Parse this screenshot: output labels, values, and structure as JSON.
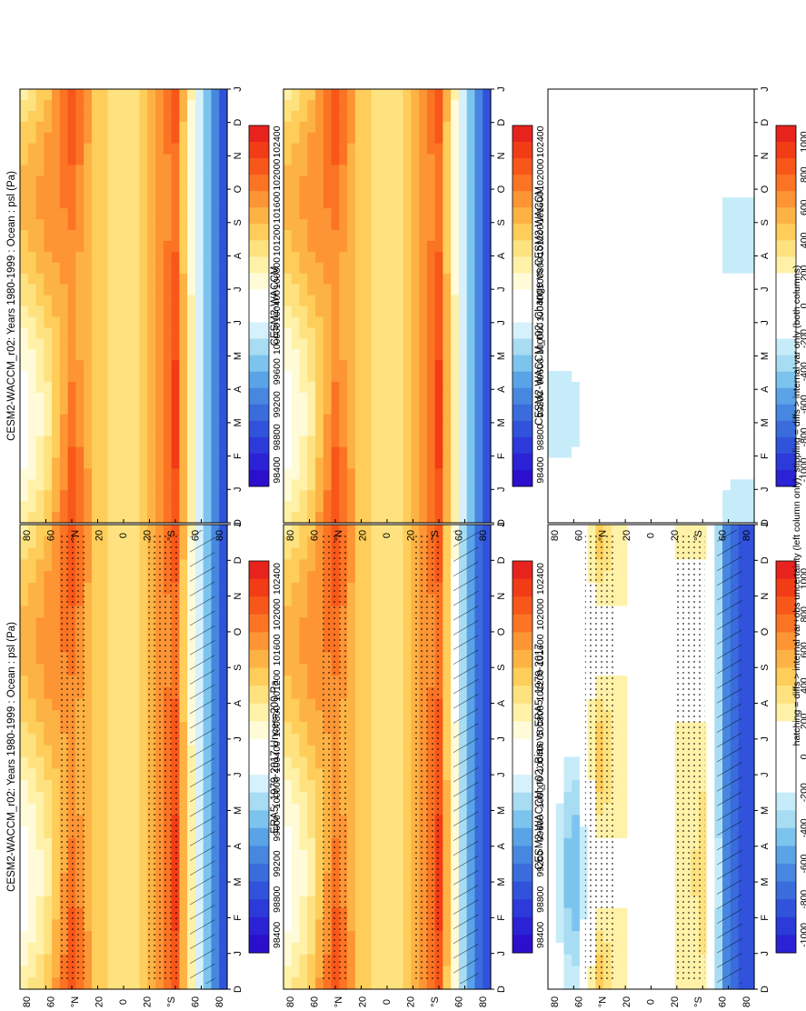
{
  "figure": {
    "footnote": "hatching = diffs > internal var+obs uncertainty (left column only); stippling = diffs > internal var only (both columns)"
  },
  "months": [
    "D",
    "J",
    "F",
    "M",
    "A",
    "M",
    "J",
    "J",
    "A",
    "S",
    "O",
    "N",
    "D",
    "J"
  ],
  "lat_labels": [
    "80",
    "60",
    "°N",
    "20",
    "0",
    "20",
    "°S",
    "60",
    "80"
  ],
  "psl_colorbar": {
    "labels": [
      "102400",
      "102000",
      "101600",
      "101200",
      "100800",
      "100400",
      "100000",
      "99600",
      "99200",
      "98800",
      "98400"
    ],
    "colors": [
      "#e8231e",
      "#f23c16",
      "#f8571a",
      "#fb7424",
      "#fd9535",
      "#fdb344",
      "#fecd5a",
      "#fee27f",
      "#fff1a8",
      "#fffbd8",
      "#ffffff",
      "#ffffff",
      "#d6f1fb",
      "#a8dcf3",
      "#7cc4ee",
      "#5aa3e6",
      "#4787e0",
      "#3a6cdc",
      "#3153db",
      "#2b3ad8",
      "#2a22d4",
      "#2a10cc"
    ]
  },
  "diff_colorbar": {
    "labels": [
      "1000",
      "800",
      "600",
      "400",
      "200",
      "0",
      "-200",
      "-400",
      "-600",
      "-800",
      "-1000"
    ],
    "colors": [
      "#e8231e",
      "#f23c16",
      "#f8571a",
      "#fb7424",
      "#fd9535",
      "#fdb344",
      "#fecd5a",
      "#fee27f",
      "#fff1a8",
      "#ffffff",
      "#ffffff",
      "#ffffff",
      "#ffffff",
      "#c6ecfa",
      "#a8dcf3",
      "#7cc4ee",
      "#5aa3e6",
      "#4787e0",
      "#3a6cdc",
      "#3153db",
      "#2b3ad8",
      "#2a22d4"
    ]
  },
  "panels": [
    {
      "id": "model-left",
      "title": "CESM2-WACCM_r02: Years 1980-1999 : Ocean : psl (Pa)",
      "kind": "psl",
      "hatch": true,
      "stipple": true
    },
    {
      "id": "model-right",
      "title": "CESM2-WACCM_r02: Years 1980-1999 : Ocean : psl (Pa)",
      "kind": "psl",
      "hatch": false,
      "stipple": false
    },
    {
      "id": "obs-left",
      "title": "ERA5: 1979-2017 Uncer=200 Pa",
      "kind": "psl",
      "hatch": true,
      "stipple": true
    },
    {
      "id": "model-right-2",
      "title": "CESM2-WACCM",
      "kind": "psl",
      "hatch": false,
      "stipple": false
    },
    {
      "id": "bias-left",
      "title": "CESM2-WACCM_r02: Bias vs ERA5: 1979-2017",
      "kind": "diff",
      "hatch": true,
      "stipple": true
    },
    {
      "id": "change-right",
      "title": "CESM2-WACCM_r02: Change vs CESM2-WACCM",
      "kind": "diff",
      "hatch": false,
      "stipple": false
    }
  ],
  "chart_data": [
    {
      "type": "heatmap",
      "title": "CESM2-WACCM_r02: Years 1980-1999 : Ocean : psl (Pa)",
      "x": [
        "D",
        "J",
        "F",
        "M",
        "A",
        "M",
        "J",
        "J",
        "A",
        "S",
        "O",
        "N",
        "D",
        "J"
      ],
      "y": [
        "80N",
        "60N",
        "40N",
        "20N",
        "0",
        "20S",
        "40S",
        "60S",
        "80S"
      ],
      "zunits": "Pa",
      "zlim": [
        98400,
        102400
      ],
      "zonal_mean_profile": [
        100900,
        101300,
        101900,
        101300,
        101000,
        101400,
        102100,
        100000,
        98600
      ]
    },
    {
      "type": "heatmap",
      "title": "ERA5: 1979-2017 Uncer=200 Pa",
      "x": [
        "D",
        "J",
        "F",
        "M",
        "A",
        "M",
        "J",
        "J",
        "A",
        "S",
        "O",
        "N",
        "D",
        "J"
      ],
      "y": [
        "80N",
        "60N",
        "40N",
        "20N",
        "0",
        "20S",
        "40S",
        "60S",
        "80S"
      ],
      "zunits": "Pa",
      "zlim": [
        98400,
        102400
      ],
      "zonal_mean_profile": [
        100900,
        101300,
        101900,
        101300,
        101000,
        101400,
        102100,
        99700,
        98700
      ]
    },
    {
      "type": "heatmap",
      "title": "CESM2-WACCM_r02: Bias vs ERA5: 1979-2017",
      "x": [
        "D",
        "J",
        "F",
        "M",
        "A",
        "M",
        "J",
        "J",
        "A",
        "S",
        "O",
        "N",
        "D",
        "J"
      ],
      "y": [
        "80N",
        "60N",
        "40N",
        "20N",
        "0",
        "20S",
        "40S",
        "60S",
        "80S"
      ],
      "zunits": "Pa",
      "zlim": [
        -1000,
        1000
      ],
      "zonal_mean_profile": [
        0,
        -250,
        300,
        200,
        0,
        200,
        250,
        -700,
        -900
      ]
    },
    {
      "type": "heatmap",
      "title": "CESM2-WACCM_r02: Change vs CESM2-WACCM",
      "x": [
        "D",
        "J",
        "F",
        "M",
        "A",
        "M",
        "J",
        "J",
        "A",
        "S",
        "O",
        "N",
        "D",
        "J"
      ],
      "y": [
        "80N",
        "60N",
        "40N",
        "20N",
        "0",
        "20S",
        "40S",
        "60S",
        "80S"
      ],
      "zunits": "Pa",
      "zlim": [
        -1000,
        1000
      ],
      "zonal_mean_profile": [
        -200,
        0,
        0,
        0,
        0,
        0,
        0,
        0,
        -200
      ]
    }
  ]
}
